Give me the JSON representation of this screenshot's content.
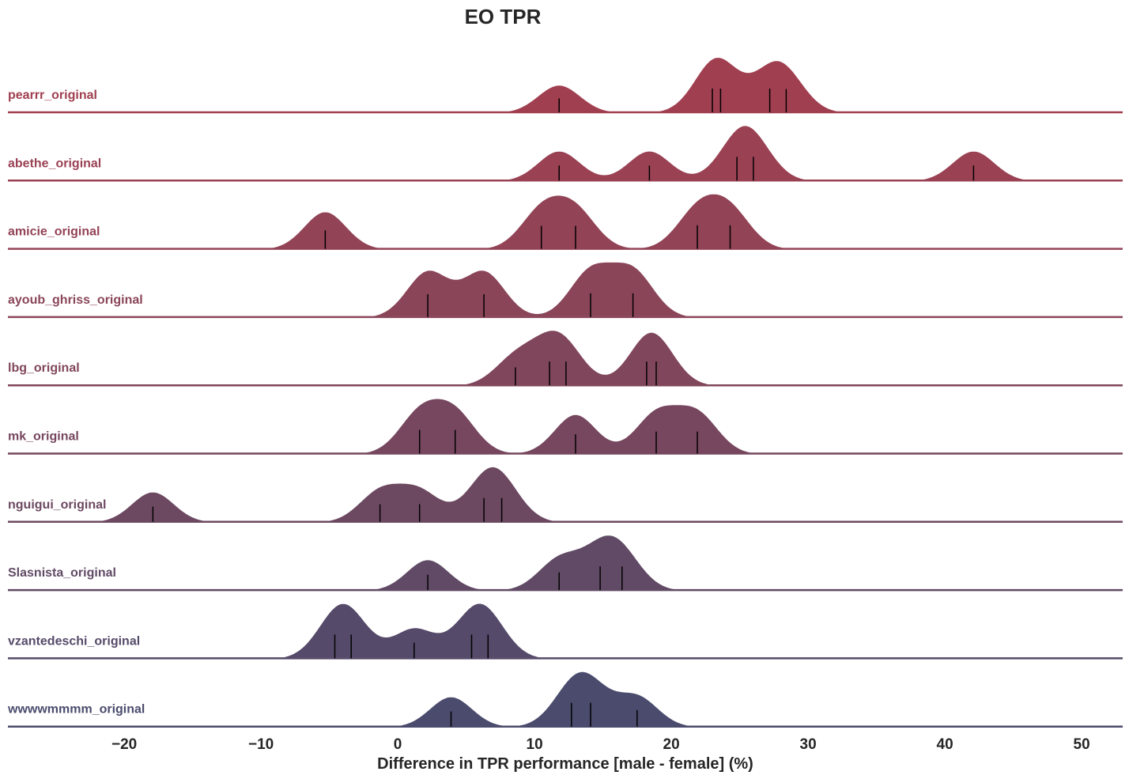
{
  "chart_data": {
    "type": "ridgeline",
    "title": "EO TPR",
    "xlabel": "Difference in TPR performance [male - female] (%)",
    "ylabel": "",
    "xlim": [
      -28.5,
      53
    ],
    "xticks": [
      -20,
      -10,
      0,
      10,
      20,
      30,
      40,
      50
    ],
    "xtick_labels": [
      "−20",
      "−10",
      "0",
      "10",
      "20",
      "30",
      "40",
      "50"
    ],
    "grid": false,
    "legend": "none",
    "series": [
      {
        "name": "pearrr_original",
        "color": "#a03f50",
        "values": [
          11.8,
          23.0,
          23.6,
          27.2,
          28.4
        ]
      },
      {
        "name": "abethe_original",
        "color": "#9a4254",
        "values": [
          11.8,
          18.4,
          24.8,
          26.0,
          42.1
        ]
      },
      {
        "name": "amicie_original",
        "color": "#924356",
        "values": [
          -5.3,
          10.5,
          13.0,
          21.9,
          24.3
        ]
      },
      {
        "name": "ayoub_ghriss_original",
        "color": "#8a4559",
        "values": [
          2.2,
          6.3,
          14.1,
          17.2
        ]
      },
      {
        "name": "lbg_original",
        "color": "#80465b",
        "values": [
          8.6,
          11.1,
          12.3,
          18.2,
          18.9
        ]
      },
      {
        "name": "mk_original",
        "color": "#76475e",
        "values": [
          1.6,
          4.2,
          13.0,
          18.9,
          21.9
        ]
      },
      {
        "name": "nguigui_original",
        "color": "#6c4961",
        "values": [
          -17.9,
          -1.3,
          1.6,
          6.3,
          7.6
        ]
      },
      {
        "name": "Slasnista_original",
        "color": "#614a65",
        "values": [
          2.2,
          11.8,
          14.8,
          16.4
        ]
      },
      {
        "name": "vzantedeschi_original",
        "color": "#554a69",
        "values": [
          -4.6,
          -3.4,
          1.2,
          5.4,
          6.6
        ]
      },
      {
        "name": "wwwwmmmm_original",
        "color": "#4a4b6d",
        "values": [
          3.9,
          12.7,
          14.1,
          17.5
        ]
      }
    ]
  }
}
